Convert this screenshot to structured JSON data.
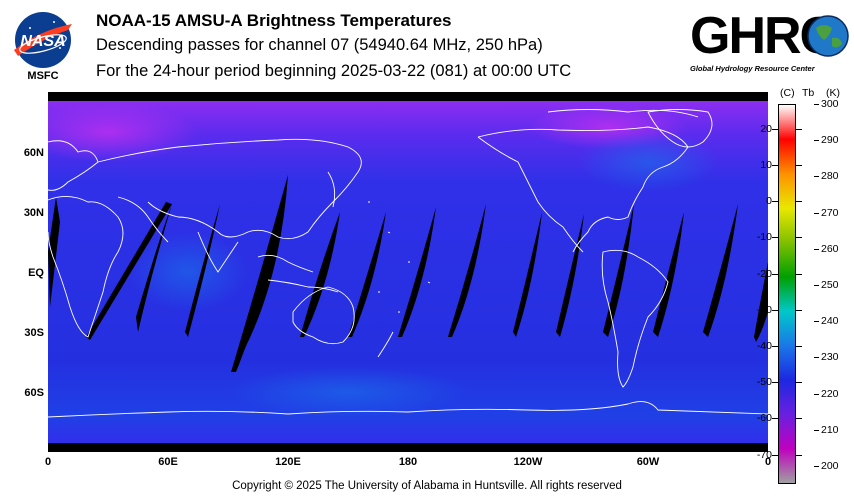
{
  "header": {
    "title": "NOAA-15 AMSU-A Brightness Temperatures",
    "subtitle_1": "Descending passes for channel 07 (54940.64 MHz, 250 hPa)",
    "subtitle_2": "For the 24-hour period beginning 2025-03-22 (081) at 00:00 UTC"
  },
  "logos": {
    "nasa": {
      "text": "NASA",
      "org": "MSFC",
      "icon": "nasa-meatball-icon"
    },
    "ghrc": {
      "text": "GHRC",
      "tagline": "Global Hydrology Resource Center",
      "icon": "globe-icon"
    }
  },
  "map": {
    "lat_labels": [
      "60N",
      "30N",
      "EQ",
      "30S",
      "60S"
    ],
    "lon_labels": [
      "0",
      "60E",
      "120E",
      "180",
      "120W",
      "60W",
      "0"
    ],
    "colors": {
      "ocean_base": "#2a2ee6",
      "polar": "#a030f0",
      "gap": "#000000",
      "coast": "#ffffff"
    }
  },
  "colorbar": {
    "unit_c": "(C)",
    "unit_tb": "Tb",
    "unit_k": "(K)",
    "celsius_ticks": [
      "20",
      "10",
      "0",
      "-10",
      "-20",
      "-30",
      "-40",
      "-50",
      "-60",
      "-70"
    ],
    "kelvin_ticks": [
      "300",
      "290",
      "280",
      "270",
      "260",
      "250",
      "240",
      "230",
      "220",
      "210",
      "200"
    ],
    "range_k": [
      195,
      300
    ],
    "colors_low_to_high": [
      "#a0a0a0",
      "#c000c0",
      "#6a20e0",
      "#1c28e0",
      "#1a78e8",
      "#00c8c8",
      "#00a000",
      "#80c000",
      "#e8e800",
      "#ff9000",
      "#ff0000",
      "#ffffff"
    ]
  },
  "footer": {
    "copyright": "Copyright © 2025 The University of Alabama in Huntsville.  All rights reserved"
  }
}
